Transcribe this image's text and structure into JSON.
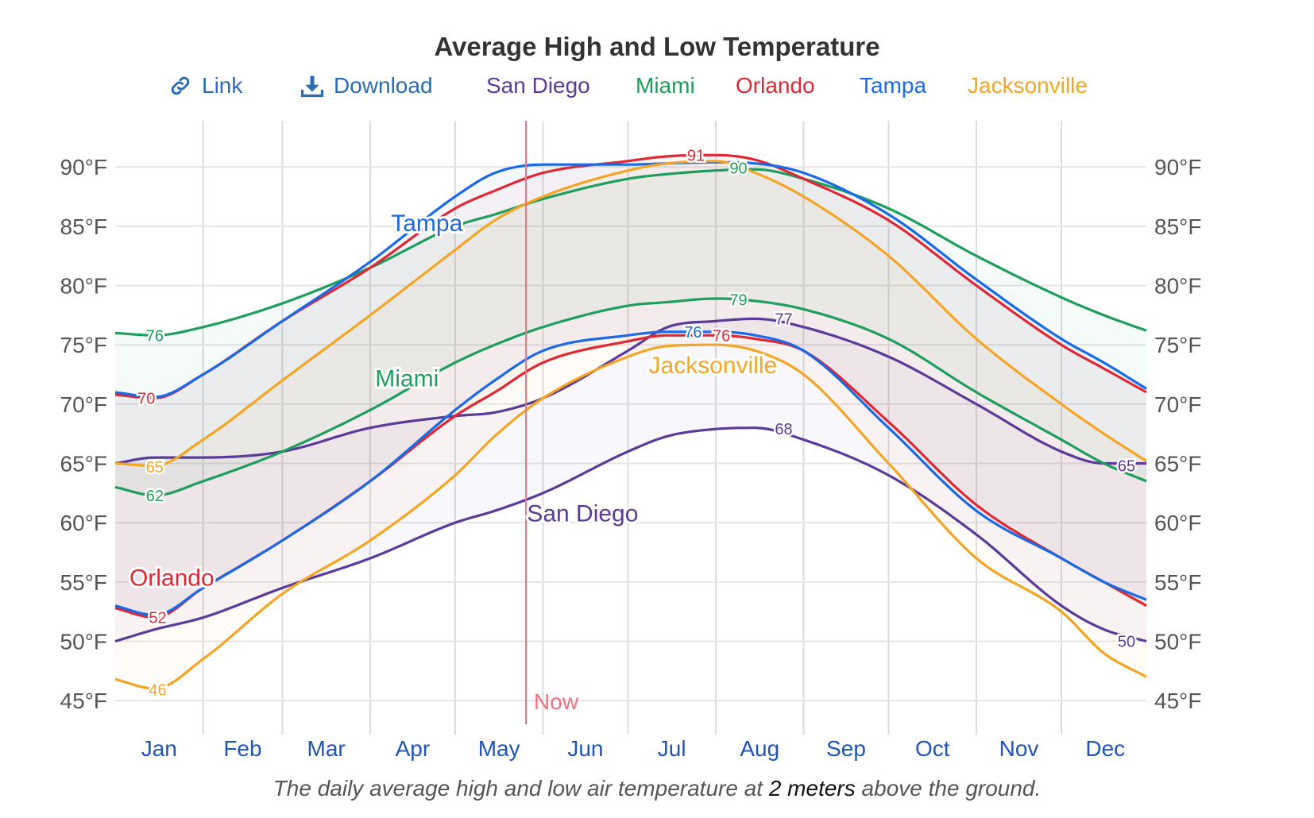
{
  "title": "Average High and Low Temperature",
  "toolbar": {
    "link_label": "Link",
    "download_label": "Download"
  },
  "caption": {
    "prefix": "The daily average high and low air temperature at",
    "emphasis": "2 meters",
    "suffix": "above the ground."
  },
  "chart_data": {
    "type": "line",
    "title": "Average High and Low Temperature",
    "x_labels": [
      "Jan",
      "Feb",
      "Mar",
      "Apr",
      "May",
      "Jun",
      "Jul",
      "Aug",
      "Sep",
      "Oct",
      "Nov",
      "Dec"
    ],
    "x_unit": "day of year",
    "x_range": [
      1,
      365
    ],
    "y_range": [
      43,
      94
    ],
    "y_ticks": [
      45,
      50,
      55,
      60,
      65,
      70,
      75,
      80,
      85,
      90
    ],
    "y_tick_format": "{v}°F",
    "grid": true,
    "now": {
      "label": "Now",
      "day": 146,
      "color": "#f2727f"
    },
    "series": [
      {
        "name": "San Diego",
        "color": "#5b3a9a",
        "high": {
          "x": [
            1,
            15,
            32,
            60,
            91,
            121,
            135,
            152,
            182,
            196,
            213,
            227,
            244,
            274,
            305,
            335,
            350,
            365
          ],
          "y": [
            65,
            65.5,
            65.5,
            66,
            68,
            69,
            69.3,
            70.5,
            74.5,
            76.5,
            77,
            77.2,
            76.5,
            74,
            70,
            66,
            65,
            65
          ]
        },
        "low": {
          "x": [
            1,
            15,
            32,
            60,
            91,
            121,
            135,
            152,
            182,
            196,
            213,
            227,
            244,
            274,
            305,
            335,
            350,
            365
          ],
          "y": [
            50,
            51,
            52,
            54.5,
            57,
            60,
            61,
            62.5,
            66,
            67.3,
            67.9,
            68,
            67,
            64,
            59,
            53,
            51,
            50
          ]
        },
        "label_x": 166,
        "label_y": 60.1
      },
      {
        "name": "Miami",
        "color": "#1e9e5c",
        "high": {
          "x": [
            1,
            15,
            32,
            60,
            91,
            121,
            135,
            152,
            182,
            196,
            213,
            227,
            244,
            274,
            305,
            335,
            350,
            365
          ],
          "y": [
            76,
            75.8,
            76.5,
            78.5,
            81.5,
            85,
            86,
            87.3,
            89,
            89.4,
            89.7,
            89.8,
            89,
            86.5,
            82.5,
            79,
            77.5,
            76.2
          ]
        },
        "low": {
          "x": [
            1,
            15,
            32,
            60,
            91,
            121,
            135,
            152,
            182,
            196,
            213,
            227,
            244,
            274,
            305,
            335,
            350,
            365
          ],
          "y": [
            63,
            62.3,
            63.5,
            66,
            69.5,
            73.5,
            75,
            76.5,
            78.3,
            78.6,
            78.9,
            78.7,
            78,
            75.5,
            71,
            67,
            65,
            63.5
          ]
        },
        "label_x": 104,
        "label_y": 71.5
      },
      {
        "name": "Orlando",
        "color": "#e02834",
        "high": {
          "x": [
            1,
            15,
            32,
            60,
            91,
            121,
            135,
            152,
            182,
            196,
            213,
            227,
            244,
            274,
            305,
            335,
            350,
            365
          ],
          "y": [
            70.8,
            70.5,
            72.5,
            77,
            81.5,
            86.5,
            88,
            89.5,
            90.5,
            90.9,
            91,
            90.6,
            89,
            85.5,
            80,
            75,
            73,
            71
          ]
        },
        "low": {
          "x": [
            1,
            15,
            32,
            60,
            91,
            121,
            135,
            152,
            182,
            196,
            213,
            227,
            244,
            274,
            305,
            335,
            350,
            365
          ],
          "y": [
            52.8,
            52,
            54.5,
            58.5,
            63.5,
            69,
            71,
            73.5,
            75.3,
            75.8,
            75.8,
            75.5,
            74.5,
            68.5,
            61.5,
            57,
            55,
            53
          ]
        },
        "label_x": 21,
        "label_y": 54.7
      },
      {
        "name": "Tampa",
        "color": "#1a6ae8",
        "high": {
          "x": [
            1,
            15,
            32,
            60,
            91,
            121,
            135,
            152,
            182,
            196,
            213,
            227,
            244,
            274,
            305,
            335,
            350,
            365
          ],
          "y": [
            71,
            70.6,
            72.5,
            77,
            82,
            87.5,
            89.5,
            90.2,
            90.2,
            90.3,
            90.4,
            90.3,
            89.5,
            86,
            80.5,
            75.5,
            73.5,
            71.3
          ]
        },
        "low": {
          "x": [
            1,
            15,
            32,
            60,
            91,
            121,
            135,
            152,
            182,
            196,
            213,
            227,
            244,
            274,
            305,
            335,
            350,
            365
          ],
          "y": [
            53,
            52.2,
            54.5,
            58.5,
            63.5,
            69.5,
            72,
            74.5,
            75.8,
            76.1,
            76.1,
            75.8,
            74.5,
            68,
            61,
            57,
            55,
            53.5
          ]
        },
        "label_x": 111,
        "label_y": 84.6
      },
      {
        "name": "Jacksonville",
        "color": "#f5a524",
        "high": {
          "x": [
            1,
            15,
            32,
            60,
            91,
            121,
            135,
            152,
            182,
            196,
            213,
            227,
            244,
            274,
            305,
            335,
            350,
            365
          ],
          "y": [
            65,
            64.8,
            67,
            72,
            77.5,
            83,
            85.5,
            87.5,
            89.7,
            90.3,
            90.5,
            89.5,
            87.5,
            82.5,
            75.5,
            70,
            67.5,
            65.2
          ]
        },
        "low": {
          "x": [
            1,
            15,
            32,
            60,
            91,
            121,
            135,
            152,
            182,
            196,
            213,
            227,
            244,
            274,
            305,
            335,
            350,
            365
          ],
          "y": [
            46.8,
            46,
            48.5,
            54,
            58.5,
            64,
            67.3,
            70.5,
            74,
            74.9,
            75,
            74.5,
            72.5,
            65,
            57,
            52.5,
            49,
            47
          ]
        },
        "label_x": 212,
        "label_y": 72.6
      }
    ],
    "annotations": [
      {
        "text": "76",
        "x": 15,
        "y": 75.8,
        "color": "#1e9e5c"
      },
      {
        "text": "62",
        "x": 15,
        "y": 62.3,
        "color": "#1e9e5c"
      },
      {
        "text": "90",
        "x": 221,
        "y": 89.9,
        "color": "#1e9e5c"
      },
      {
        "text": "79",
        "x": 221,
        "y": 78.8,
        "color": "#1e9e5c"
      },
      {
        "text": "70",
        "x": 12,
        "y": 70.5,
        "color": "#e02834"
      },
      {
        "text": "52",
        "x": 16,
        "y": 52.0,
        "color": "#e02834"
      },
      {
        "text": "91",
        "x": 206,
        "y": 91.0,
        "color": "#e02834"
      },
      {
        "text": "76",
        "x": 215,
        "y": 75.8,
        "color": "#e02834"
      },
      {
        "text": "76",
        "x": 205,
        "y": 76.1,
        "color": "#1a6ae8"
      },
      {
        "text": "65",
        "x": 15,
        "y": 64.7,
        "color": "#f5a524"
      },
      {
        "text": "46",
        "x": 16,
        "y": 45.9,
        "color": "#f5a524"
      },
      {
        "text": "77",
        "x": 237,
        "y": 77.2,
        "color": "#5b3a9a"
      },
      {
        "text": "68",
        "x": 237,
        "y": 67.9,
        "color": "#5b3a9a"
      },
      {
        "text": "65",
        "x": 358,
        "y": 64.8,
        "color": "#5b3a9a"
      },
      {
        "text": "50",
        "x": 358,
        "y": 50.0,
        "color": "#5b3a9a"
      }
    ]
  }
}
